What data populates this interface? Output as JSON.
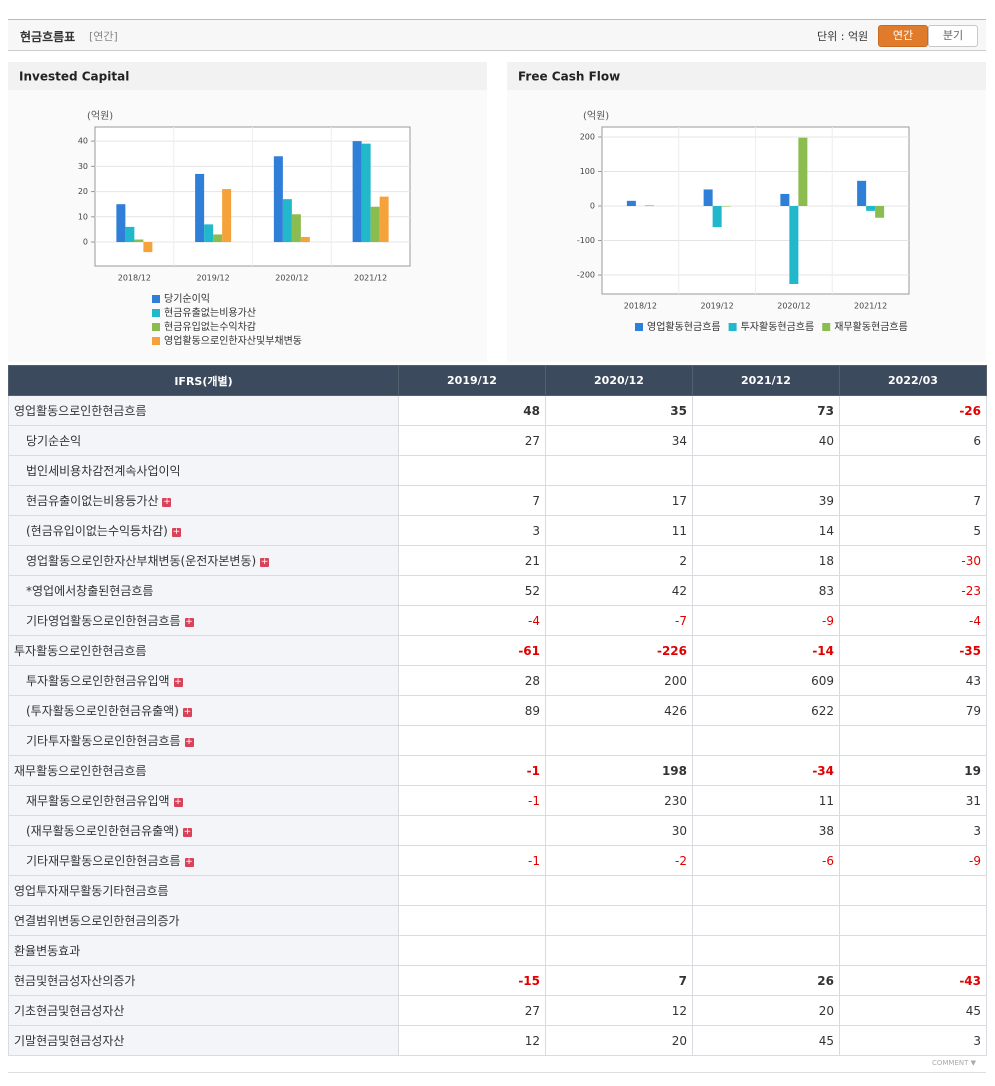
{
  "header": {
    "title": "현금흐름표",
    "period": "[연간]",
    "unit": "단위 : 억원",
    "tabs": [
      "연간",
      "분기"
    ]
  },
  "charts": [
    {
      "type": "bar",
      "title": "Invested Capital",
      "y_label": "(억원)",
      "categories": [
        "2018/12",
        "2019/12",
        "2020/12",
        "2021/12"
      ],
      "series": [
        {
          "name": "당기순이익",
          "color": "#2f7ed8",
          "values": [
            15,
            27,
            34,
            40
          ]
        },
        {
          "name": "현금유출없는비용가산",
          "color": "#22b8cc",
          "values": [
            6,
            7,
            17,
            39
          ]
        },
        {
          "name": "현금유입없는수익차감",
          "color": "#8bbc4f",
          "values": [
            1,
            3,
            11,
            14
          ]
        },
        {
          "name": "영업활동으로인한자산및부채변동",
          "color": "#f6a23a",
          "values": [
            -4,
            21,
            2,
            18
          ]
        }
      ],
      "ylim": [
        -9.5,
        45.6
      ],
      "yticks": [
        0,
        10,
        20,
        30,
        40
      ],
      "grid": true
    },
    {
      "type": "bar",
      "title": "Free Cash Flow",
      "y_label": "(억원)",
      "categories": [
        "2018/12",
        "2019/12",
        "2020/12",
        "2021/12"
      ],
      "series": [
        {
          "name": "영업활동현금흐름",
          "color": "#2f7ed8",
          "values": [
            15,
            48,
            35,
            73
          ]
        },
        {
          "name": "투자활동현금흐름",
          "color": "#22b8cc",
          "values": [
            null,
            -61,
            -226,
            -14
          ]
        },
        {
          "name": "재무활동현금흐름",
          "color": "#8bbc4f",
          "values": [
            2,
            -1,
            198,
            -34
          ]
        }
      ],
      "ylim": [
        -255,
        229
      ],
      "yticks": [
        200,
        100,
        0,
        -100,
        -200
      ],
      "grid": true
    }
  ],
  "table": {
    "columns": [
      "IFRS(개별)",
      "2019/12",
      "2020/12",
      "2021/12",
      "2022/03"
    ],
    "rows": [
      {
        "label": "영업활동으로인한현금흐름",
        "level": 0,
        "bold": true,
        "values": [
          48,
          35,
          73,
          -26
        ]
      },
      {
        "label": "당기순손익",
        "level": 1,
        "values": [
          27,
          34,
          40,
          6
        ]
      },
      {
        "label": "법인세비용차감전계속사업이익",
        "level": 1,
        "values": [
          null,
          null,
          null,
          null
        ]
      },
      {
        "label": "현금유출이없는비용등가산",
        "level": 1,
        "expand": true,
        "values": [
          7,
          17,
          39,
          7
        ]
      },
      {
        "label": "(현금유입이없는수익등차감)",
        "level": 1,
        "expand": true,
        "values": [
          3,
          11,
          14,
          5
        ]
      },
      {
        "label": "영업활동으로인한자산부채변동(운전자본변동)",
        "level": 1,
        "expand": true,
        "values": [
          21,
          2,
          18,
          -30
        ]
      },
      {
        "label": "*영업에서창출된현금흐름",
        "level": 1,
        "values": [
          52,
          42,
          83,
          -23
        ]
      },
      {
        "label": "기타영업활동으로인한현금흐름",
        "level": 1,
        "expand": true,
        "values": [
          -4,
          -7,
          -9,
          -4
        ]
      },
      {
        "label": "투자활동으로인한현금흐름",
        "level": 0,
        "bold": true,
        "values": [
          -61,
          -226,
          -14,
          -35
        ]
      },
      {
        "label": "투자활동으로인한현금유입액",
        "level": 1,
        "expand": true,
        "values": [
          28,
          200,
          609,
          43
        ]
      },
      {
        "label": "(투자활동으로인한현금유출액)",
        "level": 1,
        "expand": true,
        "values": [
          89,
          426,
          622,
          79
        ]
      },
      {
        "label": "기타투자활동으로인한현금흐름",
        "level": 1,
        "expand": true,
        "values": [
          null,
          null,
          null,
          null
        ]
      },
      {
        "label": "재무활동으로인한현금흐름",
        "level": 0,
        "bold": true,
        "values": [
          -1,
          198,
          -34,
          19
        ]
      },
      {
        "label": "재무활동으로인한현금유입액",
        "level": 1,
        "expand": true,
        "values": [
          -1,
          230,
          11,
          31
        ]
      },
      {
        "label": "(재무활동으로인한현금유출액)",
        "level": 1,
        "expand": true,
        "values": [
          null,
          30,
          38,
          3
        ]
      },
      {
        "label": "기타재무활동으로인한현금흐름",
        "level": 1,
        "expand": true,
        "values": [
          -1,
          -2,
          -6,
          -9
        ]
      },
      {
        "label": "영업투자재무활동기타현금흐름",
        "level": 0,
        "values": [
          null,
          null,
          null,
          null
        ]
      },
      {
        "label": "연결범위변동으로인한현금의증가",
        "level": 0,
        "values": [
          null,
          null,
          null,
          null
        ]
      },
      {
        "label": "환율변동효과",
        "level": 0,
        "values": [
          null,
          null,
          null,
          null
        ]
      },
      {
        "label": "현금및현금성자산의증가",
        "level": 0,
        "bold": true,
        "values": [
          -15,
          7,
          26,
          -43
        ]
      },
      {
        "label": "기초현금및현금성자산",
        "level": 0,
        "values": [
          27,
          12,
          20,
          45
        ]
      },
      {
        "label": "기말현금및현금성자산",
        "level": 0,
        "values": [
          12,
          20,
          45,
          3
        ]
      }
    ]
  },
  "footer": {
    "comment": "COMMENT"
  }
}
